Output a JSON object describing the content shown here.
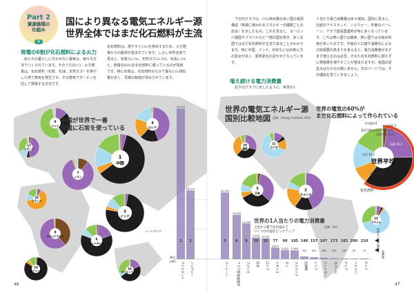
{
  "badge": {
    "part": "Part 2",
    "subtitle_line1": "資源循環の",
    "subtitle_line2": "仕組み",
    "number": "9"
  },
  "title": {
    "line1": "国により異なる電気エネルギー源",
    "line2": "世界全体ではまだ化石燃料が主流"
  },
  "left_text": {
    "heading": "発電の6割が化石燃料による火力",
    "col1": "私たちの暮らしに欠かせない電気は、様々な方法でつくられています。そのうちの1つ、火力発電は、化石燃料（石炭、石油、天然ガス）を燃やした熱で蒸気を発生させ、その蒸気でタービンを回して発電する方法です。",
    "col2": "化石燃料は、燃やすとCO₂を排出するため、火力発電からの脱却が望まれています。しかし世界全体で見ると、石炭35.2%、天然ガス22.5%、石油2.3%と、発電の60%を化石燃料に頼っているのが現状です。特に石炭は、化石燃料のなかで最もCO₂排出量が多く、早期の転換が求められています。"
  },
  "right_text": {
    "col1a": "下の円グラフは、CO₂排出量の多い国の電源構成（発電に使われるエネルギーの種類ごとの割合）を示したもの。これを見ると、ヨーロッパ諸国やブラジルなど一部の国を除き、多くの国ではまだ化石燃料が主流であることがわかります。特に中国、インド、日本などは石炭火力の割合が多く、脱炭素化の足かせとなっています。",
    "heading": "増え続ける電力消費量",
    "col1b": "右下のグラフに示したように、世界の1",
    "col2": "人当たり電力消費量は年々増加。国別に見ると、北欧のアイスランド、ノルウェー、中東のバーレーン、アラブ首長国連邦が特に多くなっています。これは寒い国では暖房、熱い国では冷房の利用が多いためです。今後の人口増や温暖化による冷房需要の高まりを考えると、電力消費量がますます増えるのは必至。そのため化石燃料に頼らずに発電量を増やすことが望まれますが、各国の足並みはなかなか揃いません。次のページでは、その理由を見ていきましょう。"
  },
  "captions": {
    "china_note_line1": "中国が世界で一番",
    "china_note_line2": "発電に石炭を使っている",
    "map_title_line1": "世界の電気エネルギー源",
    "map_title_line2": "国別比較地図",
    "map_source": "出典：Energy Institute 2024",
    "world_note_line1": "世界の電気の60%が",
    "world_note_line2": "まだ化石燃料によって作られている",
    "fossil_label": "化石燃料",
    "indonesia_label": "インドネシア"
  },
  "colors": {
    "coal": "#1e1c1c",
    "natural_gas": "#9a68b8",
    "oil": "#7b4d22",
    "nuclear": "#f2a126",
    "hydro": "#a9dbf1",
    "renewable": "#8cc852",
    "other": "#cfcfcf",
    "fossil_ring": "#e8441f",
    "bar": "#8a78b4"
  },
  "legend": {
    "coal": "石炭",
    "natural_gas": "天然ガス",
    "oil": "石油",
    "nuclear": "原子力",
    "hydro": "水力",
    "renewable": "再生可能エネルギー",
    "other": "その他"
  },
  "pies": [
    {
      "rank": "1",
      "name": "中国",
      "shares": [
        60.8,
        3.2,
        1.0,
        4.6,
        13.5,
        16.0,
        0.9
      ]
    },
    {
      "rank": "2",
      "name": "アメリカ",
      "shares": [
        16.2,
        43.1,
        0.5,
        18.2,
        5.8,
        16.0,
        0.2
      ]
    },
    {
      "rank": "3",
      "name": "インド",
      "shares": [
        75.0,
        2.7,
        0.1,
        3.0,
        8.0,
        11.0,
        0.2
      ]
    },
    {
      "rank": "4",
      "name": "ロシア",
      "shares": [
        17.6,
        43.4,
        1.0,
        18.6,
        17.5,
        1.4,
        0.5
      ]
    },
    {
      "rank": "5",
      "name": "日本",
      "shares": [
        30.8,
        33.3,
        3.3,
        5.5,
        7.6,
        19.0,
        0.5
      ]
    },
    {
      "rank": "6",
      "name": "インドネシア",
      "shares": [
        61.6,
        17.4,
        1.9,
        0,
        7.0,
        11.9,
        0.2
      ]
    },
    {
      "rank": "7",
      "name": "イラン",
      "shares": [
        0.2,
        83.1,
        10.9,
        1.8,
        3.8,
        0.2,
        0
      ]
    },
    {
      "rank": "8",
      "name": "サウジアラビア",
      "shares": [
        0,
        60.0,
        38.6,
        0,
        0,
        1.4,
        0
      ]
    },
    {
      "rank": "9",
      "name": "ドイツ",
      "shares": [
        26.1,
        13.0,
        0.7,
        1.4,
        3.4,
        51.9,
        3.5
      ]
    },
    {
      "rank": "10",
      "name": "韓国",
      "shares": [
        33.0,
        28.0,
        1.3,
        30.4,
        0.5,
        6.8,
        0
      ]
    },
    {
      "rank": "11",
      "name": "カナダ",
      "shares": [
        5.1,
        12.0,
        0.7,
        14.3,
        61.5,
        6.2,
        0.2
      ]
    },
    {
      "rank": "13",
      "name": "ブラジル",
      "shares": [
        2.4,
        5.5,
        0.8,
        2.1,
        60.4,
        28.5,
        0.3
      ]
    },
    {
      "rank": "14",
      "name": "南アフリカ",
      "shares": [
        82.4,
        0,
        2.1,
        4.6,
        0.3,
        10.4,
        0.2
      ]
    },
    {
      "rank": "16",
      "name": "オーストラリア",
      "shares": [
        46.5,
        17.0,
        1.8,
        0,
        5.2,
        29.0,
        0.5
      ]
    },
    {
      "rank": "17",
      "name": "イタリア",
      "shares": [
        5.2,
        45.0,
        3.6,
        0,
        14.2,
        28.0,
        4.0
      ]
    },
    {
      "rank": "25",
      "name": "フランス",
      "shares": [
        0.4,
        6.4,
        1.2,
        64.8,
        11.2,
        15.8,
        0.2
      ]
    }
  ],
  "world_average": {
    "name": "世界平均",
    "shares": [
      35.2,
      22.5,
      2.3,
      9.1,
      14.2,
      15.9,
      0.8
    ],
    "labels": [
      "石炭 35.2",
      "天然ガス 22.5",
      "石油2.3",
      "原子力 9.1",
      "水力 14.2",
      "再生可能エネルギー 15.9",
      "その他0.8"
    ]
  },
  "chart_data": {
    "type": "bar",
    "title": "世界の1人当たりの電力消費量",
    "subtitle_line1": "上位から最下位の国まで",
    "subtitle_line2": "いくつかの国をピックアップ",
    "source": "出典：EIA",
    "rank_legend": "世界から見た順位",
    "value_legend": "消費量",
    "ylabel": "単位 kWh",
    "ylim": [
      0,
      50533
    ],
    "categories": [
      "アイスランド",
      "ノルウェー",
      "バーレーン",
      "アラブ首長国連邦",
      "アメリカ",
      "日本",
      "ロシア",
      "イギリス",
      "タイ",
      "ウクライナ",
      "北朝鮮",
      "シリア",
      "ミャンマー",
      "ネパール",
      "ケニア",
      "イエメン",
      "チャド"
    ],
    "ranks": [
      "1",
      "2",
      "3",
      "6",
      "9",
      "29",
      "32",
      "77",
      "90",
      "105",
      "148",
      "157",
      "167",
      "173",
      "183",
      "200",
      "210"
    ],
    "values": [
      50533,
      23071,
      22355,
      14844,
      11992,
      7259,
      6949,
      3877,
      3052,
      2969,
      910,
      659,
      498,
      330,
      181,
      65,
      15
    ],
    "value_labels": [
      "50,533",
      "23,071",
      "22,355",
      "14,844",
      "11,992",
      "7,259",
      "6,949",
      "3,877",
      "3,052",
      "2,969",
      "910",
      "659",
      "498",
      "330",
      "181",
      "65",
      "15"
    ]
  },
  "page_numbers": {
    "left": "46",
    "right": "47"
  }
}
